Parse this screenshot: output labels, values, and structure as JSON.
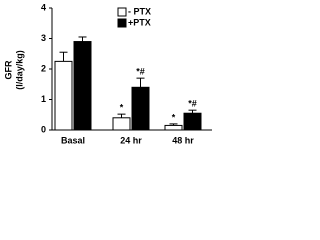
{
  "chart_data": {
    "type": "bar",
    "y_label": [
      "GFR",
      "(l/day/kg)"
    ],
    "categories": [
      "Basal",
      "24 hr",
      "48 hr"
    ],
    "series": [
      {
        "name": "- PTX",
        "color": "#ffffff",
        "values": [
          2.25,
          0.4,
          0.15
        ],
        "errors": [
          0.3,
          0.12,
          0.05
        ],
        "markers": [
          null,
          "*",
          "*"
        ]
      },
      {
        "name": "+PTX",
        "color": "#000000",
        "values": [
          2.9,
          1.4,
          0.55
        ],
        "errors": [
          0.15,
          0.3,
          0.1
        ],
        "markers": [
          null,
          "*#",
          "*#"
        ]
      }
    ],
    "ylim": [
      0,
      4
    ],
    "yticks": [
      0,
      1,
      2,
      3,
      4
    ],
    "legend": "top-right"
  }
}
